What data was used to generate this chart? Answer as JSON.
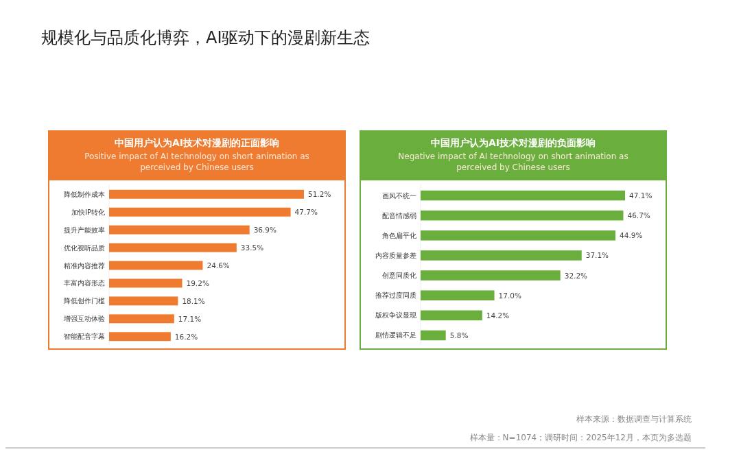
{
  "chart_data": [
    {
      "type": "bar",
      "orientation": "horizontal",
      "title": "中国用户认为AI技术对漫剧的正面影响",
      "subtitle": "Positive impact of AI technology on short animation as perceived by Chinese users",
      "categories": [
        "降低制作成本",
        "加快IP转化",
        "提升产能效率",
        "优化视听品质",
        "精准内容推荐",
        "丰富内容形态",
        "降低创作门槛",
        "增强互动体验",
        "智能配音字幕"
      ],
      "values": [
        51.2,
        47.7,
        36.9,
        33.5,
        24.6,
        19.2,
        18.1,
        17.1,
        16.2
      ],
      "value_labels": [
        "51.2%",
        "47.7%",
        "36.9%",
        "33.5%",
        "24.6%",
        "19.2%",
        "18.1%",
        "17.1%",
        "16.2%"
      ],
      "color": "#ee7b30",
      "annotations": [
        "规模化与品质化博弈，AI驱动下的漫剧新生态"
      ]
    },
    {
      "type": "bar",
      "orientation": "horizontal",
      "title": "中国用户认为AI技术对漫剧的负面影响",
      "subtitle": "Negative impact of AI technology on short animation as perceived by Chinese users",
      "categories": [
        "画风不统一",
        "配音情感弱",
        "角色扁平化",
        "内容质量参差",
        "创意同质化",
        "推荐过度同质",
        "版权争议显现",
        "剧情逻辑不足"
      ],
      "values": [
        47.1,
        46.7,
        44.9,
        37.1,
        32.2,
        17.0,
        14.2,
        5.8
      ],
      "value_labels": [
        "47.1%",
        "46.7%",
        "44.9%",
        "37.1%",
        "32.2%",
        "17.0%",
        "14.2%",
        "5.8%"
      ],
      "color": "#6aaf3d",
      "annotations": [
        "样本来源：数据调查与计算系统",
        "样本量：N=1074；调研时间：2025年12月，本页为多选题"
      ]
    }
  ]
}
